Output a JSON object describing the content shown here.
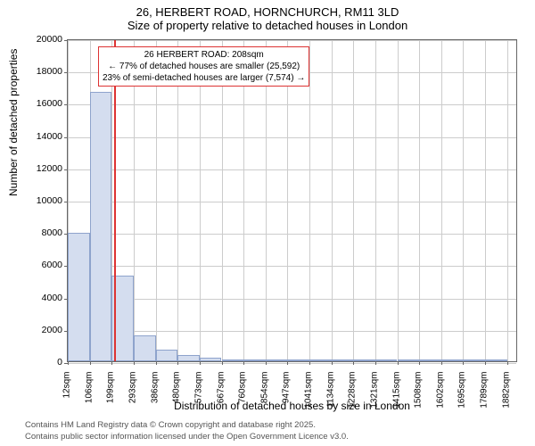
{
  "title": {
    "main": "26, HERBERT ROAD, HORNCHURCH, RM11 3LD",
    "sub": "Size of property relative to detached houses in London"
  },
  "annotation": {
    "line1": "26 HERBERT ROAD: 208sqm",
    "line2": "← 77% of detached houses are smaller (25,592)",
    "line3": "23% of semi-detached houses are larger (7,574) →"
  },
  "axes": {
    "ylabel": "Number of detached properties",
    "xlabel": "Distribution of detached houses by size in London",
    "ylim": [
      0,
      20000
    ],
    "yticks": [
      0,
      2000,
      4000,
      6000,
      8000,
      10000,
      12000,
      14000,
      16000,
      18000,
      20000
    ],
    "xmin": 12,
    "xmax": 1929,
    "xticks": [
      12,
      106,
      199,
      293,
      386,
      480,
      573,
      667,
      760,
      854,
      947,
      1041,
      1134,
      1228,
      1321,
      1415,
      1508,
      1602,
      1695,
      1789,
      1882
    ],
    "xtick_labels": [
      "12sqm",
      "106sqm",
      "199sqm",
      "293sqm",
      "386sqm",
      "480sqm",
      "573sqm",
      "667sqm",
      "760sqm",
      "854sqm",
      "947sqm",
      "1041sqm",
      "1134sqm",
      "1228sqm",
      "1321sqm",
      "1415sqm",
      "1508sqm",
      "1602sqm",
      "1695sqm",
      "1789sqm",
      "1882sqm"
    ]
  },
  "chart": {
    "type": "histogram",
    "bin_width": 93.5,
    "bar_color": "#d4ddef",
    "bar_border": "#8ea3cc",
    "grid_color": "#cccccc",
    "axis_color": "#666666",
    "marker_value": 208,
    "marker_color": "#dd3333",
    "bins": [
      {
        "start": 12,
        "count": 7950
      },
      {
        "start": 106,
        "count": 16700
      },
      {
        "start": 199,
        "count": 5280
      },
      {
        "start": 293,
        "count": 1600
      },
      {
        "start": 386,
        "count": 740
      },
      {
        "start": 480,
        "count": 360
      },
      {
        "start": 573,
        "count": 200
      },
      {
        "start": 667,
        "count": 130
      },
      {
        "start": 760,
        "count": 85
      },
      {
        "start": 854,
        "count": 55
      },
      {
        "start": 947,
        "count": 35
      },
      {
        "start": 1041,
        "count": 25
      },
      {
        "start": 1134,
        "count": 18
      },
      {
        "start": 1228,
        "count": 12
      },
      {
        "start": 1321,
        "count": 8
      },
      {
        "start": 1415,
        "count": 5
      },
      {
        "start": 1508,
        "count": 3
      },
      {
        "start": 1602,
        "count": 2
      },
      {
        "start": 1695,
        "count": 1
      },
      {
        "start": 1789,
        "count": 1
      }
    ]
  },
  "footer": {
    "line1": "Contains HM Land Registry data © Crown copyright and database right 2025.",
    "line2": "Contains public sector information licensed under the Open Government Licence v3.0."
  }
}
